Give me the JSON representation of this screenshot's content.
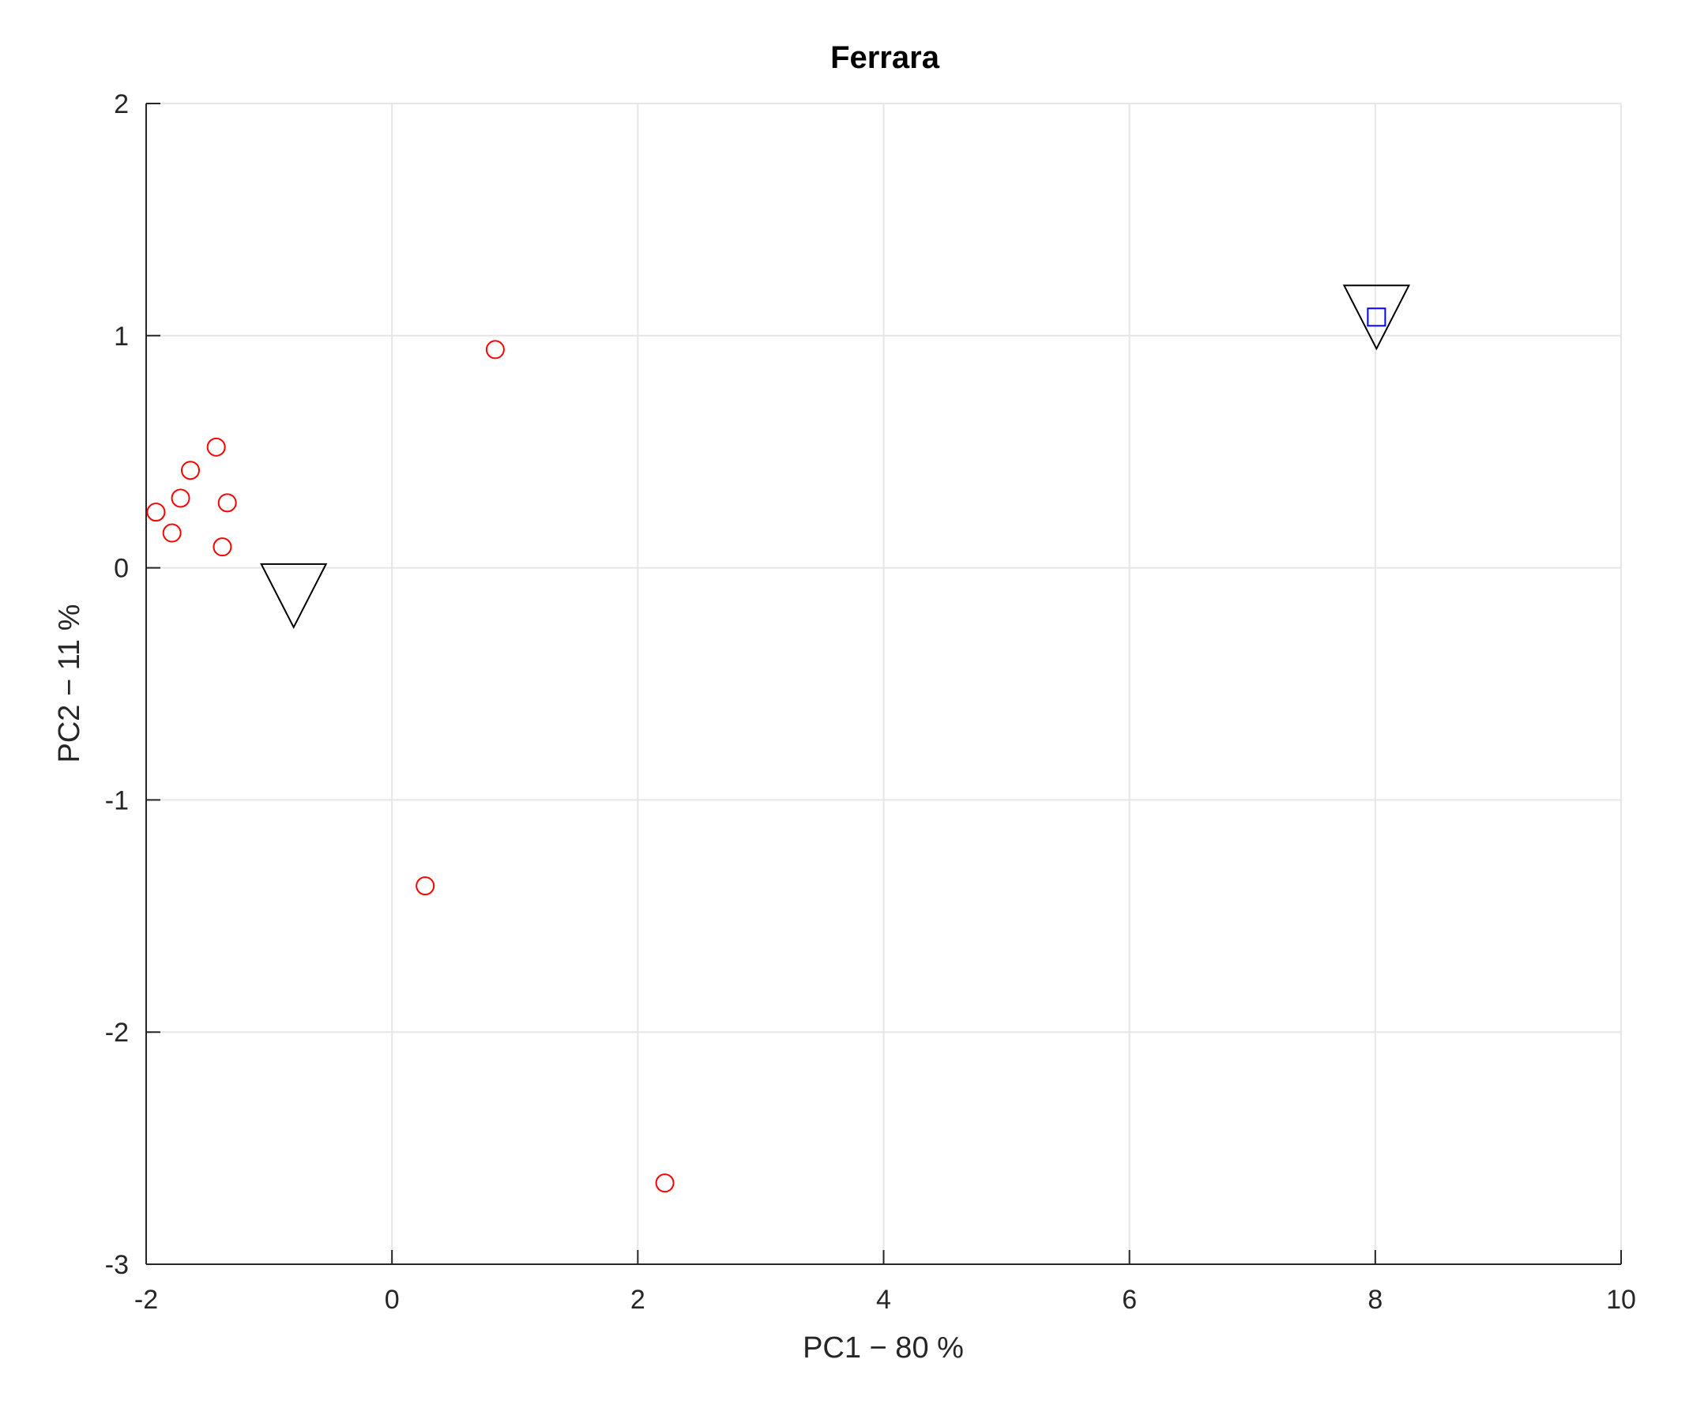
{
  "chart_data": {
    "type": "scatter",
    "title": "Ferrara",
    "xlabel": "PC1 − 80 %",
    "ylabel": "PC2 − 11 %",
    "xlim": [
      -2,
      10
    ],
    "ylim": [
      -3,
      2
    ],
    "x_ticks": [
      -2,
      0,
      2,
      4,
      6,
      8,
      10
    ],
    "y_ticks": [
      -3,
      -2,
      -1,
      0,
      1,
      2
    ],
    "grid": true,
    "legend": "none",
    "series": [
      {
        "marker": "circle",
        "color": "#ff0000",
        "points": [
          {
            "x": 0.84,
            "y": 0.94
          },
          {
            "x": -1.43,
            "y": 0.52
          },
          {
            "x": -1.64,
            "y": 0.42
          },
          {
            "x": -1.72,
            "y": 0.3
          },
          {
            "x": -1.92,
            "y": 0.24
          },
          {
            "x": -1.34,
            "y": 0.28
          },
          {
            "x": -1.79,
            "y": 0.15
          },
          {
            "x": -1.38,
            "y": 0.09
          },
          {
            "x": 0.27,
            "y": -1.37
          },
          {
            "x": 2.22,
            "y": -2.65
          }
        ]
      },
      {
        "marker": "square",
        "color": "#0000ff",
        "points": [
          {
            "x": 8.01,
            "y": 1.08
          }
        ]
      },
      {
        "marker": "triangle-down",
        "color": "#000000",
        "points": [
          {
            "x": -0.8,
            "y": -0.12
          },
          {
            "x": 8.01,
            "y": 1.08
          }
        ]
      }
    ]
  }
}
